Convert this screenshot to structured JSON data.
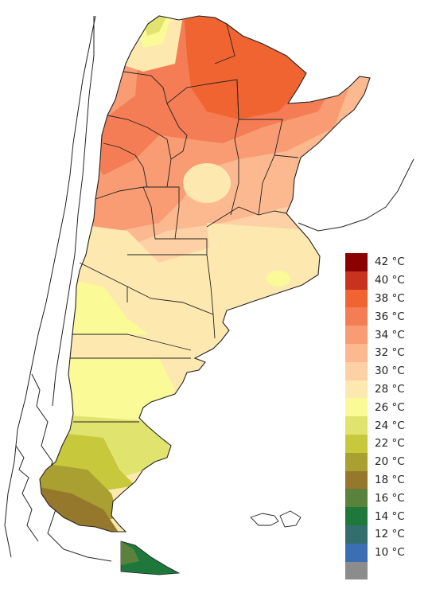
{
  "legend": {
    "items": [
      {
        "label": "42 °C",
        "color": "#8b0000"
      },
      {
        "label": "40 °C",
        "color": "#c8321e"
      },
      {
        "label": "38 °C",
        "color": "#f06432"
      },
      {
        "label": "36 °C",
        "color": "#f57d55"
      },
      {
        "label": "34 °C",
        "color": "#f99c73"
      },
      {
        "label": "32 °C",
        "color": "#fcb88e"
      },
      {
        "label": "30 °C",
        "color": "#fdd1a5"
      },
      {
        "label": "28 °C",
        "color": "#fde8b0"
      },
      {
        "label": "26 °C",
        "color": "#fafa96"
      },
      {
        "label": "24 °C",
        "color": "#e0e46e"
      },
      {
        "label": "22 °C",
        "color": "#c8c83c"
      },
      {
        "label": "20 °C",
        "color": "#aaa032"
      },
      {
        "label": "18 °C",
        "color": "#96782d"
      },
      {
        "label": "16 °C",
        "color": "#5a823c"
      },
      {
        "label": "14 °C",
        "color": "#1e783c"
      },
      {
        "label": "12 °C",
        "color": "#326e6e"
      },
      {
        "label": "10 °C",
        "color": "#3c6eb4"
      },
      {
        "label": "",
        "color": "#8c8c8c"
      }
    ]
  },
  "map": {
    "colors": {
      "very_hot": "#f06432",
      "hot": "#f57d55",
      "warm": "#f99c73",
      "mild_warm": "#fcb88e",
      "mild": "#fdd1a5",
      "temperate": "#fde8b0",
      "cool_yellow": "#fafa96",
      "cool": "#e0e46e",
      "cold_olive": "#c8c83c",
      "cold": "#aaa032",
      "colder": "#96782d",
      "coldest_green": "#1e783c",
      "border": "#222222",
      "chile": "#ffffff"
    }
  }
}
